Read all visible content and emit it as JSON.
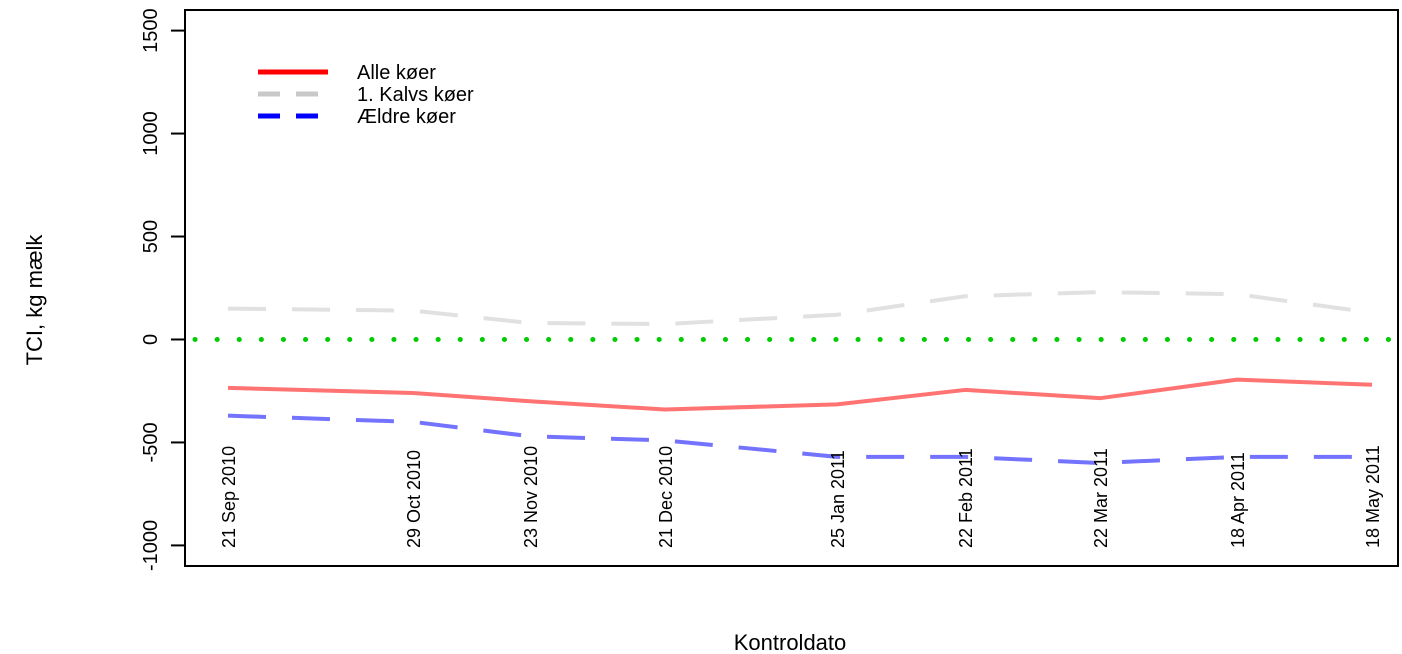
{
  "chart_data": {
    "type": "line",
    "title": "",
    "xlabel": "Kontroldato",
    "ylabel": "TCI, kg mælk",
    "ylim": [
      -1100,
      1600
    ],
    "yticks": [
      -1000,
      -500,
      0,
      500,
      1000,
      1500
    ],
    "ytick_labels": [
      "-1000",
      "-500",
      "0",
      "500",
      "1000",
      "1500"
    ],
    "x": [
      "2010-09-21",
      "2010-10-29",
      "2010-11-23",
      "2010-12-21",
      "2011-01-25",
      "2011-02-22",
      "2011-03-22",
      "2011-04-18",
      "2011-05-18"
    ],
    "xtick_labels": [
      "21 Sep 2010",
      "29 Oct 2010",
      "23 Nov 2010",
      "21 Dec 2010",
      "25 Jan 2011",
      "22 Feb 2011",
      "22 Mar 2011",
      "18 Apr 2011",
      "18 May 2011"
    ],
    "series": [
      {
        "name": "Alle køer",
        "color": "#ff0000",
        "dash": "solid",
        "values": [
          -235,
          -260,
          -300,
          -340,
          -315,
          -245,
          -285,
          -195,
          -220
        ]
      },
      {
        "name": "1. Kalvs køer",
        "color": "#c8c8c8",
        "dash": "dashed",
        "values": [
          150,
          140,
          80,
          75,
          120,
          210,
          230,
          220,
          130
        ]
      },
      {
        "name": "Ældre køer",
        "color": "#0000ff",
        "dash": "dashed",
        "values": [
          -370,
          -400,
          -470,
          -490,
          -570,
          -570,
          -600,
          -570,
          -570
        ]
      }
    ],
    "reference_line": {
      "value": 0,
      "color": "#00cc00",
      "style": "dotted"
    },
    "legend": {
      "position": "top-left"
    },
    "grid": false
  }
}
